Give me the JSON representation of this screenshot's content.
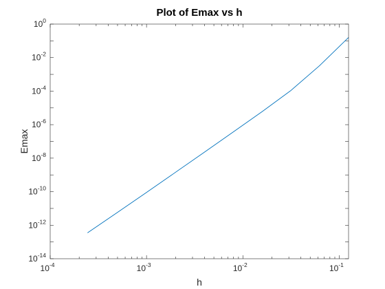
{
  "chart_data": {
    "type": "line",
    "title": "Plot of Emax vs h",
    "xlabel": "h",
    "ylabel": "Emax",
    "xscale": "log",
    "yscale": "log",
    "xlim": [
      0.0001,
      0.125
    ],
    "ylim": [
      1e-14,
      1
    ],
    "grid": false,
    "legend": "none",
    "xticks": [
      {
        "value": 0.0001,
        "base": "10",
        "exp": "-4"
      },
      {
        "value": 0.001,
        "base": "10",
        "exp": "-3"
      },
      {
        "value": 0.01,
        "base": "10",
        "exp": "-2"
      },
      {
        "value": 0.1,
        "base": "10",
        "exp": "-1"
      }
    ],
    "yticks": [
      {
        "value": 1e-14,
        "base": "10",
        "exp": "-14"
      },
      {
        "value": 1e-12,
        "base": "10",
        "exp": "-12"
      },
      {
        "value": 1e-10,
        "base": "10",
        "exp": "-10"
      },
      {
        "value": 1e-08,
        "base": "10",
        "exp": "-8"
      },
      {
        "value": 1e-06,
        "base": "10",
        "exp": "-6"
      },
      {
        "value": 0.0001,
        "base": "10",
        "exp": "-4"
      },
      {
        "value": 0.01,
        "base": "10",
        "exp": "-2"
      },
      {
        "value": 1,
        "base": "10",
        "exp": "0"
      }
    ],
    "series": [
      {
        "color": "#0072bd",
        "x": [
          0.000244,
          0.000488,
          0.000977,
          0.00195,
          0.00391,
          0.00781,
          0.0156,
          0.03125,
          0.0625,
          0.125
        ],
        "y": [
          3.5e-13,
          5.3e-12,
          8.2e-11,
          1.3e-09,
          2.1e-08,
          3.4e-07,
          5.6e-06,
          0.000105,
          0.0033,
          0.16
        ]
      }
    ]
  }
}
